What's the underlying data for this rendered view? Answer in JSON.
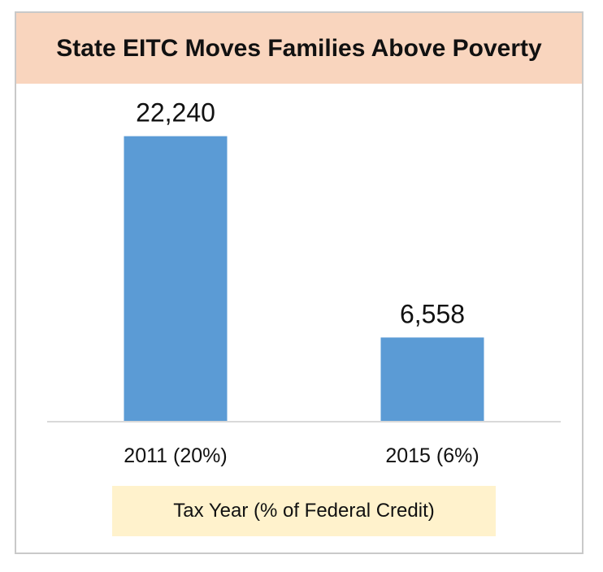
{
  "chart_data": {
    "type": "bar",
    "title": "State EITC Moves Families Above Poverty",
    "xlabel": "Tax Year (% of Federal Credit)",
    "ylabel": "",
    "categories": [
      "2011 (20%)",
      "2015 (6%)"
    ],
    "values": [
      22240,
      6558
    ],
    "data_labels": [
      "22,240",
      "6,558"
    ],
    "ylim": [
      0,
      25000
    ],
    "grid": false,
    "legend": "none",
    "colors": {
      "bar": "#5b9bd5",
      "title_band": "#f9d5be",
      "xlabel_band": "#fff2cc",
      "axis": "#d9d9d9"
    }
  }
}
